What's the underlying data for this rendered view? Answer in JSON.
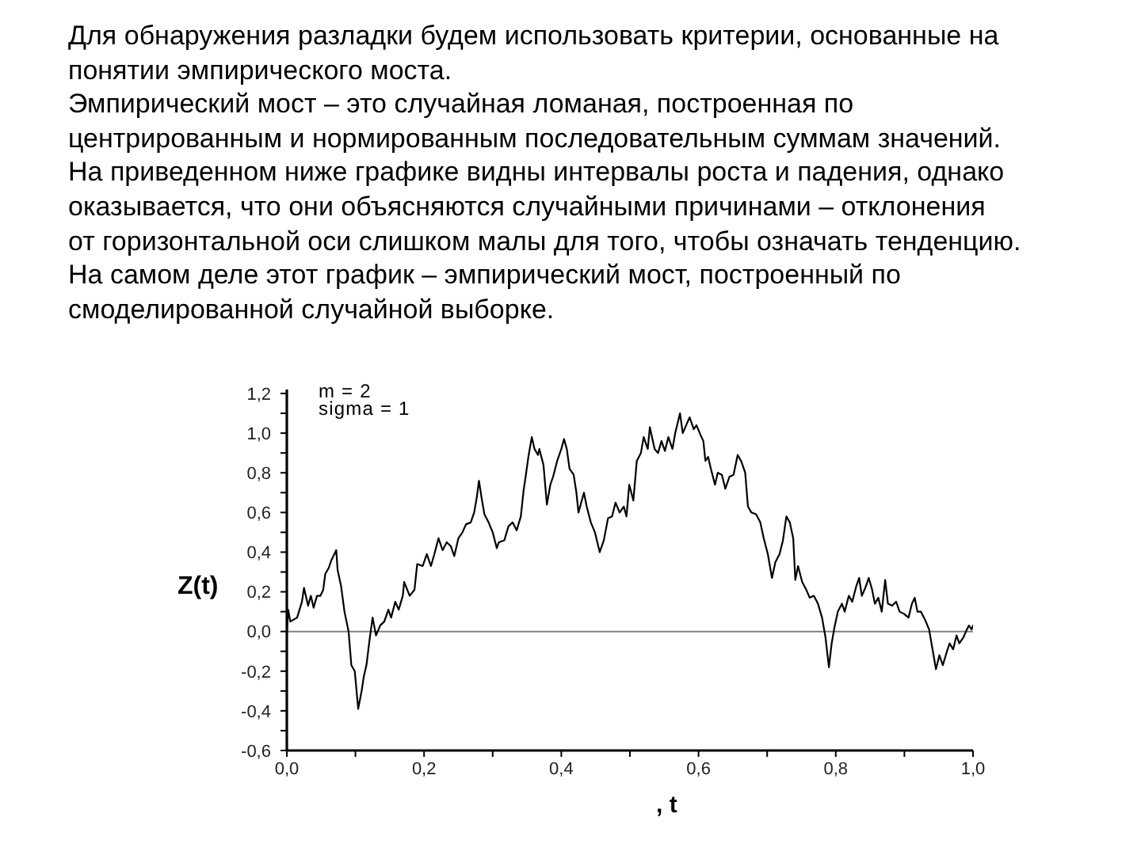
{
  "chart_data": {
    "type": "line",
    "title": "Для обнаружения разладки будем использовать критерии, основанные на\nпонятии эмпирического моста.\nЭмпирический мост – это случайная ломаная, построенная по\nцентрированным и нормированным последовательным суммам значений.\nНа приведенном ниже графике видны интервалы роста и падения, однако\nоказывается, что они объясняются случайными причинами – отклонения\nот горизонтальной оси слишком малы для того, чтобы означать тенденцию.\nНа самом деле этот график – эмпирический мост, построенный по\nсмоделированной случайной выборке.",
    "xlabel": ", t",
    "ylabel": "Z(t)",
    "annotations": [
      "m = 2",
      "sigma = 1"
    ],
    "color": "#000000",
    "x": [
      0,
      0.002,
      0.005,
      0.015,
      0.022,
      0.025,
      0.031,
      0.035,
      0.039,
      0.044,
      0.049,
      0.053,
      0.056,
      0.061,
      0.065,
      0.072,
      0.074,
      0.079,
      0.084,
      0.09,
      0.094,
      0.099,
      0.104,
      0.109,
      0.112,
      0.116,
      0.121,
      0.125,
      0.13,
      0.136,
      0.142,
      0.148,
      0.152,
      0.158,
      0.163,
      0.169,
      0.171,
      0.179,
      0.186,
      0.19,
      0.198,
      0.204,
      0.21,
      0.215,
      0.221,
      0.227,
      0.233,
      0.239,
      0.244,
      0.25,
      0.256,
      0.261,
      0.268,
      0.273,
      0.277,
      0.28,
      0.284,
      0.288,
      0.294,
      0.3,
      0.306,
      0.309,
      0.317,
      0.323,
      0.329,
      0.335,
      0.341,
      0.345,
      0.348,
      0.352,
      0.357,
      0.361,
      0.366,
      0.368,
      0.374,
      0.379,
      0.384,
      0.388,
      0.394,
      0.4,
      0.404,
      0.408,
      0.412,
      0.418,
      0.422,
      0.425,
      0.433,
      0.437,
      0.443,
      0.449,
      0.456,
      0.462,
      0.468,
      0.474,
      0.479,
      0.485,
      0.491,
      0.495,
      0.499,
      0.505,
      0.51,
      0.516,
      0.52,
      0.526,
      0.529,
      0.536,
      0.541,
      0.546,
      0.551,
      0.556,
      0.562,
      0.566,
      0.573,
      0.577,
      0.582,
      0.587,
      0.593,
      0.597,
      0.603,
      0.607,
      0.61,
      0.614,
      0.618,
      0.624,
      0.628,
      0.634,
      0.639,
      0.645,
      0.651,
      0.657,
      0.662,
      0.668,
      0.672,
      0.677,
      0.684,
      0.69,
      0.695,
      0.701,
      0.707,
      0.712,
      0.718,
      0.723,
      0.728,
      0.733,
      0.738,
      0.741,
      0.745,
      0.751,
      0.757,
      0.762,
      0.768,
      0.774,
      0.78,
      0.785,
      0.79,
      0.794,
      0.798,
      0.803,
      0.809,
      0.813,
      0.819,
      0.824,
      0.83,
      0.834,
      0.838,
      0.843,
      0.848,
      0.853,
      0.857,
      0.862,
      0.867,
      0.872,
      0.876,
      0.882,
      0.888,
      0.893,
      0.899,
      0.906,
      0.911,
      0.915,
      0.919,
      0.924,
      0.93,
      0.936,
      0.942,
      0.946,
      0.951,
      0.956,
      0.962,
      0.966,
      0.971,
      0.976,
      0.98,
      0.986,
      0.991,
      0.994,
      0.998,
      1.0
    ],
    "values": [
      0,
      0.11,
      0.05,
      0.07,
      0.15,
      0.22,
      0.13,
      0.18,
      0.12,
      0.18,
      0.18,
      0.21,
      0.29,
      0.32,
      0.36,
      0.41,
      0.31,
      0.23,
      0.1,
      0,
      -0.17,
      -0.2,
      -0.39,
      -0.3,
      -0.23,
      -0.17,
      -0.03,
      0.07,
      -0.02,
      0.03,
      0.05,
      0.11,
      0.07,
      0.15,
      0.11,
      0.18,
      0.25,
      0.18,
      0.21,
      0.34,
      0.33,
      0.39,
      0.33,
      0.39,
      0.47,
      0.41,
      0.45,
      0.43,
      0.38,
      0.47,
      0.5,
      0.54,
      0.55,
      0.6,
      0.68,
      0.76,
      0.67,
      0.59,
      0.55,
      0.5,
      0.42,
      0.45,
      0.46,
      0.53,
      0.55,
      0.51,
      0.58,
      0.71,
      0.78,
      0.88,
      0.98,
      0.92,
      0.89,
      0.92,
      0.84,
      0.64,
      0.74,
      0.78,
      0.86,
      0.92,
      0.97,
      0.92,
      0.82,
      0.79,
      0.7,
      0.6,
      0.7,
      0.63,
      0.55,
      0.5,
      0.4,
      0.46,
      0.57,
      0.58,
      0.65,
      0.6,
      0.63,
      0.58,
      0.74,
      0.66,
      0.86,
      0.9,
      0.98,
      0.92,
      1.03,
      0.92,
      0.9,
      0.96,
      0.91,
      0.98,
      0.92,
      1.0,
      1.1,
      1.0,
      1.04,
      1.08,
      1.02,
      1.04,
      0.99,
      0.96,
      0.86,
      0.88,
      0.82,
      0.74,
      0.8,
      0.79,
      0.72,
      0.78,
      0.79,
      0.89,
      0.86,
      0.8,
      0.63,
      0.6,
      0.59,
      0.55,
      0.47,
      0.39,
      0.27,
      0.35,
      0.39,
      0.46,
      0.58,
      0.55,
      0.47,
      0.26,
      0.33,
      0.25,
      0.21,
      0.17,
      0.18,
      0.14,
      0.07,
      -0.03,
      -0.18,
      -0.06,
      0.02,
      0.1,
      0.14,
      0.1,
      0.18,
      0.15,
      0.23,
      0.27,
      0.18,
      0.22,
      0.27,
      0.21,
      0.14,
      0.17,
      0.1,
      0.26,
      0.14,
      0.13,
      0.15,
      0.1,
      0.09,
      0.07,
      0.14,
      0.17,
      0.1,
      0.1,
      0.06,
      0.01,
      -0.11,
      -0.19,
      -0.12,
      -0.17,
      -0.1,
      -0.06,
      -0.09,
      -0.02,
      -0.06,
      -0.03,
      0.01,
      0.03,
      0.01,
      0.03
    ],
    "xlim": [
      0,
      1
    ],
    "xticks": [
      {
        "value": 0,
        "label": "0,0"
      },
      {
        "value": 0.1,
        "label": null
      },
      {
        "value": 0.2,
        "label": "0,2"
      },
      {
        "value": 0.3,
        "label": null
      },
      {
        "value": 0.4,
        "label": "0,4"
      },
      {
        "value": 0.5,
        "label": null
      },
      {
        "value": 0.6,
        "label": "0,6"
      },
      {
        "value": 0.7,
        "label": null
      },
      {
        "value": 0.8,
        "label": "0,8"
      },
      {
        "value": 0.9,
        "label": null
      },
      {
        "value": 1,
        "label": "1,0"
      }
    ],
    "ylim": [
      -0.6,
      1.22
    ],
    "yticks": [
      {
        "value": -0.6,
        "label": "-0,6"
      },
      {
        "value": -0.5,
        "label": null
      },
      {
        "value": -0.4,
        "label": "-0,4"
      },
      {
        "value": -0.3,
        "label": null
      },
      {
        "value": -0.2,
        "label": "-0,2"
      },
      {
        "value": -0.1,
        "label": null
      },
      {
        "value": 0,
        "label": "0,0"
      },
      {
        "value": 0.1,
        "label": null
      },
      {
        "value": 0.2,
        "label": "0,2"
      },
      {
        "value": 0.3,
        "label": null
      },
      {
        "value": 0.4,
        "label": "0,4"
      },
      {
        "value": 0.5,
        "label": null
      },
      {
        "value": 0.6,
        "label": "0,6"
      },
      {
        "value": 0.7,
        "label": null
      },
      {
        "value": 0.8,
        "label": "0,8"
      },
      {
        "value": 0.9,
        "label": null
      },
      {
        "value": 1,
        "label": "1,0"
      },
      {
        "value": 1.1,
        "label": null
      },
      {
        "value": 1.2,
        "label": "1,2"
      }
    ],
    "ref_lines": [
      {
        "axis": "y",
        "value": 0,
        "color": "#808080"
      }
    ]
  }
}
